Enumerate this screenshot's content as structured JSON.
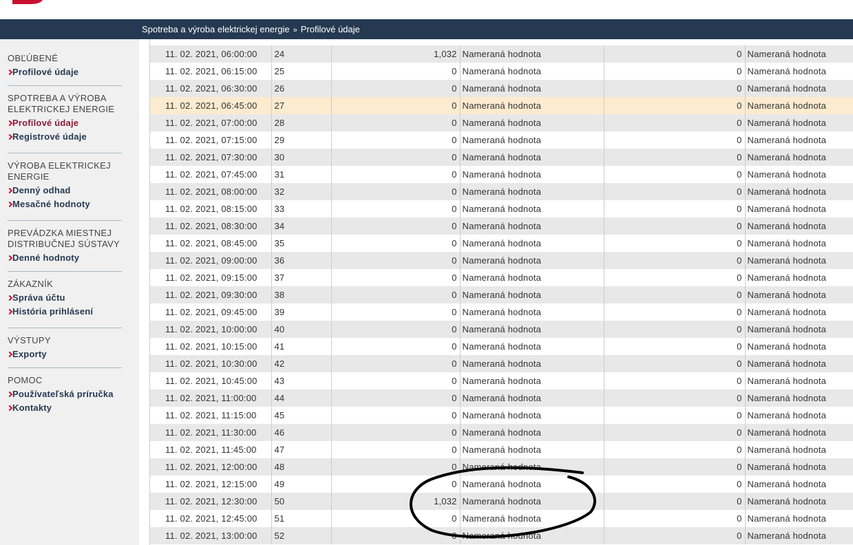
{
  "breadcrumb": {
    "items": [
      "Spotreba a výroba elektrickej energie",
      "Profilové údaje"
    ],
    "separator": "»"
  },
  "sidebar": {
    "sections": [
      {
        "heading": "OBĽÚBENÉ",
        "links": [
          "Profilové údaje"
        ]
      },
      {
        "heading": "SPOTREBA A VÝROBA ELEKTRICKEJ ENERGIE",
        "links": [
          "Profilové údaje",
          "Registrové údaje"
        ]
      },
      {
        "heading": "VÝROBA ELEKTRICKEJ ENERGIE",
        "links": [
          "Denný odhad",
          "Mesačné hodnoty"
        ]
      },
      {
        "heading": "PREVÁDZKA MIESTNEJ DISTRIBUČNEJ SÚSTAVY",
        "links": [
          "Denné hodnoty"
        ]
      },
      {
        "heading": "ZÁKAZNÍK",
        "links": [
          "Správa účtu",
          "História prihlásení"
        ]
      },
      {
        "heading": "VÝSTUPY",
        "links": [
          "Exporty"
        ]
      },
      {
        "heading": "POMOC",
        "links": [
          "Používateľská príručka",
          "Kontakty"
        ]
      }
    ]
  },
  "table": {
    "rows": [
      [
        "11. 02. 2021, 06:00:00",
        "24",
        "1,032",
        "Nameraná hodnota",
        "0",
        "Nameraná hodnota"
      ],
      [
        "11. 02. 2021, 06:15:00",
        "25",
        "0",
        "Nameraná hodnota",
        "0",
        "Nameraná hodnota"
      ],
      [
        "11. 02. 2021, 06:30:00",
        "26",
        "0",
        "Nameraná hodnota",
        "0",
        "Nameraná hodnota"
      ],
      [
        "11. 02. 2021, 06:45:00",
        "27",
        "0",
        "Nameraná hodnota",
        "0",
        "Nameraná hodnota"
      ],
      [
        "11. 02. 2021, 07:00:00",
        "28",
        "0",
        "Nameraná hodnota",
        "0",
        "Nameraná hodnota"
      ],
      [
        "11. 02. 2021, 07:15:00",
        "29",
        "0",
        "Nameraná hodnota",
        "0",
        "Nameraná hodnota"
      ],
      [
        "11. 02. 2021, 07:30:00",
        "30",
        "0",
        "Nameraná hodnota",
        "0",
        "Nameraná hodnota"
      ],
      [
        "11. 02. 2021, 07:45:00",
        "31",
        "0",
        "Nameraná hodnota",
        "0",
        "Nameraná hodnota"
      ],
      [
        "11. 02. 2021, 08:00:00",
        "32",
        "0",
        "Nameraná hodnota",
        "0",
        "Nameraná hodnota"
      ],
      [
        "11. 02. 2021, 08:15:00",
        "33",
        "0",
        "Nameraná hodnota",
        "0",
        "Nameraná hodnota"
      ],
      [
        "11. 02. 2021, 08:30:00",
        "34",
        "0",
        "Nameraná hodnota",
        "0",
        "Nameraná hodnota"
      ],
      [
        "11. 02. 2021, 08:45:00",
        "35",
        "0",
        "Nameraná hodnota",
        "0",
        "Nameraná hodnota"
      ],
      [
        "11. 02. 2021, 09:00:00",
        "36",
        "0",
        "Nameraná hodnota",
        "0",
        "Nameraná hodnota"
      ],
      [
        "11. 02. 2021, 09:15:00",
        "37",
        "0",
        "Nameraná hodnota",
        "0",
        "Nameraná hodnota"
      ],
      [
        "11. 02. 2021, 09:30:00",
        "38",
        "0",
        "Nameraná hodnota",
        "0",
        "Nameraná hodnota"
      ],
      [
        "11. 02. 2021, 09:45:00",
        "39",
        "0",
        "Nameraná hodnota",
        "0",
        "Nameraná hodnota"
      ],
      [
        "11. 02. 2021, 10:00:00",
        "40",
        "0",
        "Nameraná hodnota",
        "0",
        "Nameraná hodnota"
      ],
      [
        "11. 02. 2021, 10:15:00",
        "41",
        "0",
        "Nameraná hodnota",
        "0",
        "Nameraná hodnota"
      ],
      [
        "11. 02. 2021, 10:30:00",
        "42",
        "0",
        "Nameraná hodnota",
        "0",
        "Nameraná hodnota"
      ],
      [
        "11. 02. 2021, 10:45:00",
        "43",
        "0",
        "Nameraná hodnota",
        "0",
        "Nameraná hodnota"
      ],
      [
        "11. 02. 2021, 11:00:00",
        "44",
        "0",
        "Nameraná hodnota",
        "0",
        "Nameraná hodnota"
      ],
      [
        "11. 02. 2021, 11:15:00",
        "45",
        "0",
        "Nameraná hodnota",
        "0",
        "Nameraná hodnota"
      ],
      [
        "11. 02. 2021, 11:30:00",
        "46",
        "0",
        "Nameraná hodnota",
        "0",
        "Nameraná hodnota"
      ],
      [
        "11. 02. 2021, 11:45:00",
        "47",
        "0",
        "Nameraná hodnota",
        "0",
        "Nameraná hodnota"
      ],
      [
        "11. 02. 2021, 12:00:00",
        "48",
        "0",
        "Nameraná hodnota",
        "0",
        "Nameraná hodnota"
      ],
      [
        "11. 02. 2021, 12:15:00",
        "49",
        "0",
        "Nameraná hodnota",
        "0",
        "Nameraná hodnota"
      ],
      [
        "11. 02. 2021, 12:30:00",
        "50",
        "1,032",
        "Nameraná hodnota",
        "0",
        "Nameraná hodnota"
      ],
      [
        "11. 02. 2021, 12:45:00",
        "51",
        "0",
        "Nameraná hodnota",
        "0",
        "Nameraná hodnota"
      ],
      [
        "11. 02. 2021, 13:00:00",
        "52",
        "0",
        "Nameraná hodnota",
        "0",
        "Nameraná hodnota"
      ]
    ]
  }
}
